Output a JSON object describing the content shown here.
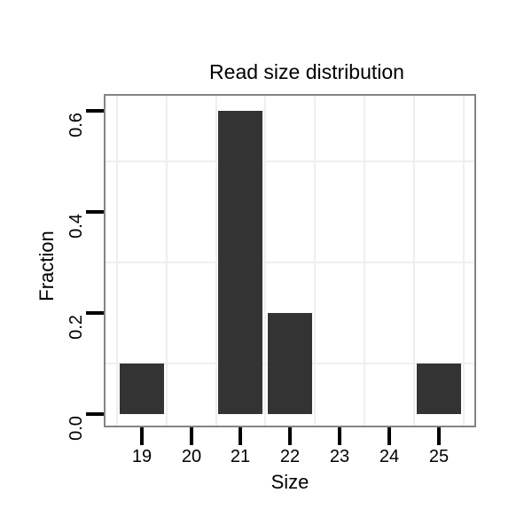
{
  "chart_data": {
    "type": "bar",
    "title": "Read size distribution",
    "xlabel": "Size",
    "ylabel": "Fraction",
    "bars": [
      {
        "x": 19,
        "value": 0.1
      },
      {
        "x": 21,
        "value": 0.6
      },
      {
        "x": 22,
        "value": 0.2
      },
      {
        "x": 25,
        "value": 0.1
      }
    ],
    "bar_width": 0.9,
    "x_ticks": [
      {
        "value": 19,
        "label": "19"
      },
      {
        "value": 20,
        "label": "20"
      },
      {
        "value": 21,
        "label": "21"
      },
      {
        "value": 22,
        "label": "22"
      },
      {
        "value": 23,
        "label": "23"
      },
      {
        "value": 24,
        "label": "24"
      },
      {
        "value": 25,
        "label": "25"
      }
    ],
    "y_ticks": [
      {
        "value": 0.0,
        "label": "0.0"
      },
      {
        "value": 0.2,
        "label": "0.2"
      },
      {
        "value": 0.4,
        "label": "0.4"
      },
      {
        "value": 0.6,
        "label": "0.6"
      }
    ],
    "x_range": [
      18.27,
      25.72
    ],
    "y_range": [
      -0.023,
      0.629
    ],
    "x_minor_gridlines": [
      18.5,
      19.5,
      20.5,
      21.5,
      22.5,
      23.5,
      24.5,
      25.5
    ],
    "y_minor_gridlines": [
      0.1,
      0.3,
      0.5
    ],
    "grid": "minor-only",
    "legend": "none",
    "colors": {
      "bar": "#333333",
      "panel_border": "#848484",
      "gridline": "#efefef",
      "background": "#ffffff",
      "tick": "#000000",
      "text": "#000000"
    }
  }
}
